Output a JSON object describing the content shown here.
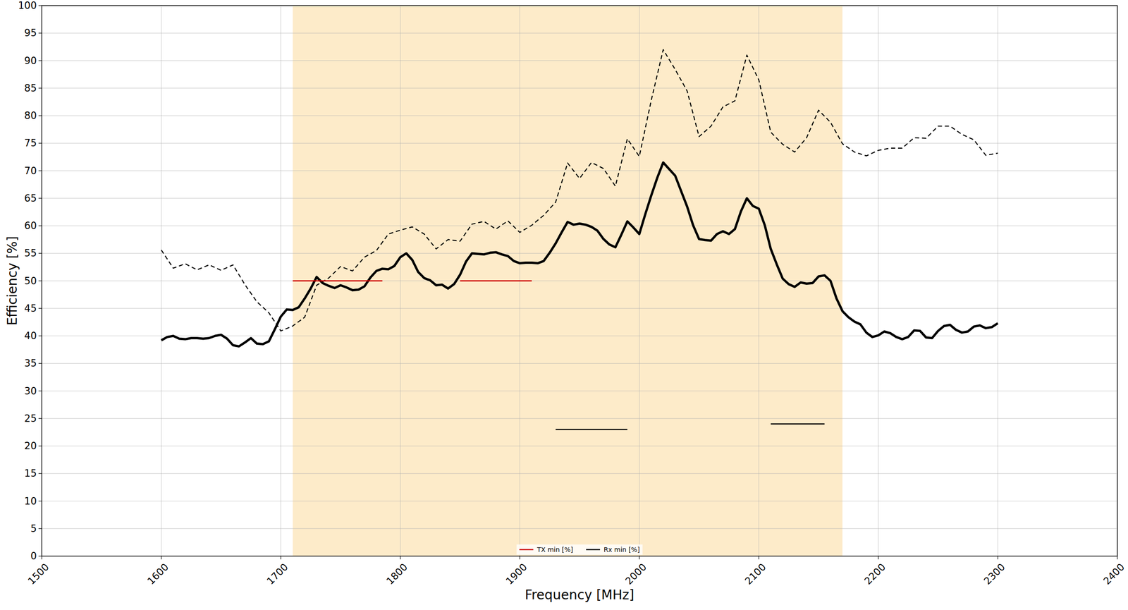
{
  "chart_data": {
    "type": "line",
    "x_label": "Frequency [MHz]",
    "y_label": "Efficiency [%]",
    "xlim": [
      1500,
      2400
    ],
    "xticks": [
      1500,
      1600,
      1700,
      1800,
      1900,
      2000,
      2100,
      2200,
      2300,
      2400
    ],
    "ylim": [
      0,
      100
    ],
    "yticks": [
      0,
      5,
      10,
      15,
      20,
      25,
      30,
      35,
      40,
      45,
      50,
      55,
      60,
      65,
      70,
      75,
      80,
      85,
      90,
      95,
      100
    ],
    "grid": true,
    "legend": "lower center",
    "shaded_range": {
      "x": [
        1710,
        2170
      ],
      "color": "#fdebc9"
    },
    "series": [
      {
        "color": "#000000",
        "line_style": "solid",
        "x": [
          1600,
          1605,
          1610,
          1615,
          1620,
          1625,
          1630,
          1635,
          1640,
          1645,
          1650,
          1655,
          1660,
          1665,
          1670,
          1675,
          1680,
          1685,
          1690,
          1695,
          1700,
          1705,
          1710,
          1715,
          1720,
          1725,
          1730,
          1735,
          1740,
          1745,
          1750,
          1755,
          1760,
          1765,
          1770,
          1775,
          1780,
          1785,
          1790,
          1795,
          1800,
          1805,
          1810,
          1815,
          1820,
          1825,
          1830,
          1835,
          1840,
          1845,
          1850,
          1855,
          1860,
          1865,
          1870,
          1875,
          1880,
          1885,
          1890,
          1895,
          1900,
          1905,
          1910,
          1915,
          1920,
          1925,
          1930,
          1935,
          1940,
          1945,
          1950,
          1955,
          1960,
          1965,
          1970,
          1975,
          1980,
          1985,
          1990,
          1995,
          2000,
          2005,
          2010,
          2015,
          2020,
          2025,
          2030,
          2035,
          2040,
          2045,
          2050,
          2055,
          2060,
          2065,
          2070,
          2075,
          2080,
          2085,
          2090,
          2095,
          2100,
          2105,
          2110,
          2115,
          2120,
          2125,
          2130,
          2135,
          2140,
          2145,
          2150,
          2155,
          2160,
          2165,
          2170,
          2175,
          2180,
          2185,
          2190,
          2195,
          2200,
          2205,
          2210,
          2215,
          2220,
          2225,
          2230,
          2235,
          2240,
          2245,
          2250,
          2255,
          2260,
          2265,
          2270,
          2275,
          2280,
          2285,
          2290,
          2295,
          2300
        ],
        "values": [
          39.2,
          39.8,
          40,
          39.5,
          39.4,
          39.6,
          39.6,
          39.5,
          39.6,
          40,
          40.2,
          39.5,
          38.3,
          38.1,
          38.8,
          39.6,
          38.6,
          38.5,
          39,
          41.2,
          43.5,
          44.8,
          44.7,
          45.2,
          46.8,
          48.6,
          50.7,
          49.6,
          49.1,
          48.7,
          49.2,
          48.8,
          48.3,
          48.4,
          49,
          50.6,
          51.8,
          52.2,
          52.1,
          52.7,
          54.3,
          55,
          53.8,
          51.6,
          50.5,
          50.1,
          49.2,
          49.3,
          48.6,
          49.4,
          51.1,
          53.5,
          55,
          54.9,
          54.8,
          55.1,
          55.2,
          54.8,
          54.5,
          53.6,
          53.2,
          53.3,
          53.3,
          53.2,
          53.6,
          55.1,
          56.8,
          58.8,
          60.7,
          60.2,
          60.4,
          60.2,
          59.8,
          59.1,
          57.6,
          56.6,
          56.1,
          58.4,
          60.8,
          59.7,
          58.5,
          62.1,
          65.5,
          68.7,
          71.5,
          70.3,
          69.1,
          66.3,
          63.5,
          60.1,
          57.6,
          57.4,
          57.3,
          58.5,
          59,
          58.5,
          59.4,
          62.6,
          65,
          63.6,
          63.1,
          60.1,
          55.8,
          53,
          50.4,
          49.4,
          48.9,
          49.7,
          49.5,
          49.6,
          50.8,
          51,
          50,
          46.8,
          44.5,
          43.4,
          42.6,
          42.1,
          40.6,
          39.8,
          40.1,
          40.8,
          40.5,
          39.8,
          39.4,
          39.8,
          41,
          40.9,
          39.7,
          39.6,
          40.9,
          41.8,
          42,
          41.1,
          40.6,
          40.8,
          41.7,
          41.9,
          41.4,
          41.6,
          42.3
        ]
      },
      {
        "color": "#000000",
        "line_style": "dashed",
        "x": [
          1600,
          1610,
          1620,
          1630,
          1640,
          1650,
          1660,
          1670,
          1680,
          1690,
          1700,
          1710,
          1720,
          1730,
          1740,
          1750,
          1760,
          1770,
          1780,
          1790,
          1800,
          1810,
          1820,
          1830,
          1840,
          1850,
          1860,
          1870,
          1880,
          1890,
          1900,
          1910,
          1920,
          1930,
          1940,
          1950,
          1960,
          1970,
          1980,
          1990,
          2000,
          2010,
          2020,
          2030,
          2040,
          2050,
          2060,
          2070,
          2080,
          2090,
          2100,
          2110,
          2120,
          2130,
          2140,
          2150,
          2160,
          2170,
          2180,
          2190,
          2200,
          2210,
          2220,
          2230,
          2240,
          2250,
          2260,
          2270,
          2280,
          2290,
          2300
        ],
        "values": [
          55.6,
          52.3,
          53.1,
          52,
          52.9,
          51.9,
          52.9,
          49.3,
          46.2,
          44.2,
          40.9,
          41.8,
          43.4,
          49.2,
          50.5,
          52.6,
          51.8,
          54.3,
          55.5,
          58.5,
          59.2,
          59.8,
          58.5,
          55.8,
          57.5,
          57.2,
          60.3,
          60.8,
          59.4,
          60.9,
          58.8,
          60.1,
          61.9,
          64.3,
          71.4,
          68.6,
          71.5,
          70.4,
          67.2,
          75.8,
          72.6,
          82.8,
          92,
          88.4,
          84.5,
          76.2,
          78.1,
          81.6,
          82.7,
          91,
          86.5,
          77,
          74.8,
          73.4,
          76,
          81,
          78.8,
          74.9,
          73.4,
          72.7,
          73.7,
          74.1,
          74.1,
          76,
          75.9,
          78.1,
          78.1,
          76.6,
          75.6,
          72.8,
          73.2
        ]
      },
      {
        "name": "TX min [%]",
        "type": "segments",
        "color": "#cc0000",
        "line_style": "solid",
        "x": [
          [
            1710,
            1785
          ],
          [
            1850,
            1910
          ]
        ],
        "values": [
          50,
          50
        ]
      },
      {
        "name": "Rx min [%]",
        "type": "segments",
        "color": "#000000",
        "line_style": "solid",
        "x": [
          [
            1930,
            1990
          ],
          [
            2110,
            2155
          ]
        ],
        "values": [
          23,
          24
        ]
      }
    ]
  }
}
